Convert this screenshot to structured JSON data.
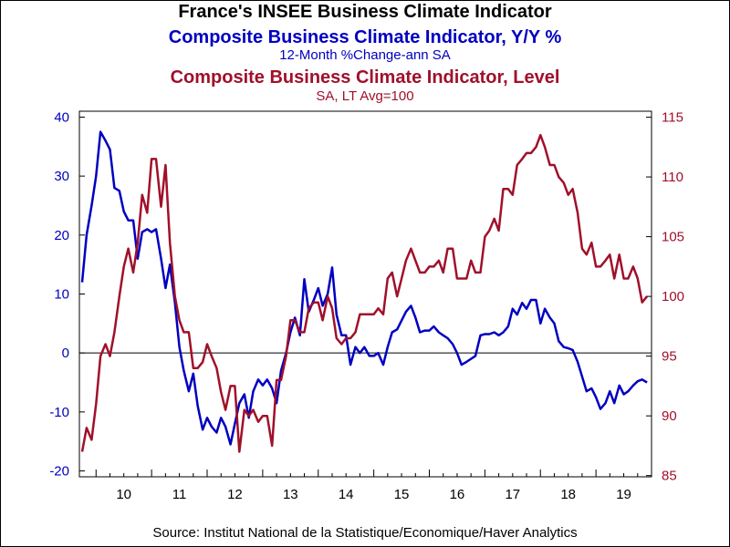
{
  "chart_data": {
    "type": "line",
    "title": "France's INSEE Business Climate Indicator",
    "series": [
      {
        "name": "Composite Business Climate Indicator, Y/Y %",
        "subtitle": "12-Month %Change-ann      SA",
        "axis": "left",
        "color": "#0000c0",
        "points": [
          [
            2009.75,
            12
          ],
          [
            2009.83,
            20
          ],
          [
            2009.92,
            25
          ],
          [
            2010.0,
            30
          ],
          [
            2010.08,
            37.5
          ],
          [
            2010.17,
            36
          ],
          [
            2010.25,
            34.5
          ],
          [
            2010.33,
            28
          ],
          [
            2010.42,
            27.5
          ],
          [
            2010.5,
            24
          ],
          [
            2010.58,
            22.5
          ],
          [
            2010.67,
            22.5
          ],
          [
            2010.75,
            16
          ],
          [
            2010.83,
            20.5
          ],
          [
            2010.92,
            21
          ],
          [
            2011.0,
            20.5
          ],
          [
            2011.08,
            21
          ],
          [
            2011.17,
            16
          ],
          [
            2011.25,
            11
          ],
          [
            2011.33,
            15
          ],
          [
            2011.42,
            8.5
          ],
          [
            2011.5,
            1
          ],
          [
            2011.58,
            -3
          ],
          [
            2011.67,
            -6.5
          ],
          [
            2011.75,
            -3.5
          ],
          [
            2011.83,
            -9
          ],
          [
            2011.92,
            -13
          ],
          [
            2012.0,
            -11
          ],
          [
            2012.08,
            -12.5
          ],
          [
            2012.17,
            -13.5
          ],
          [
            2012.25,
            -11
          ],
          [
            2012.33,
            -12.5
          ],
          [
            2012.42,
            -15.5
          ],
          [
            2012.5,
            -12
          ],
          [
            2012.58,
            -8.5
          ],
          [
            2012.67,
            -7
          ],
          [
            2012.75,
            -11
          ],
          [
            2012.83,
            -6.5
          ],
          [
            2012.92,
            -4.5
          ],
          [
            2013.0,
            -5.5
          ],
          [
            2013.08,
            -4.5
          ],
          [
            2013.17,
            -6
          ],
          [
            2013.25,
            -8.5
          ],
          [
            2013.33,
            -3
          ],
          [
            2013.42,
            0
          ],
          [
            2013.5,
            3.5
          ],
          [
            2013.58,
            6
          ],
          [
            2013.67,
            3
          ],
          [
            2013.75,
            12.5
          ],
          [
            2013.83,
            7
          ],
          [
            2013.92,
            9
          ],
          [
            2014.0,
            11
          ],
          [
            2014.08,
            8
          ],
          [
            2014.17,
            10
          ],
          [
            2014.25,
            14.5
          ],
          [
            2014.33,
            6.5
          ],
          [
            2014.42,
            3
          ],
          [
            2014.5,
            3
          ],
          [
            2014.58,
            -2
          ],
          [
            2014.67,
            1
          ],
          [
            2014.75,
            0
          ],
          [
            2014.83,
            1
          ],
          [
            2014.92,
            -0.5
          ],
          [
            2015.0,
            -0.5
          ],
          [
            2015.08,
            0
          ],
          [
            2015.17,
            -2
          ],
          [
            2015.25,
            1
          ],
          [
            2015.33,
            3.5
          ],
          [
            2015.42,
            4
          ],
          [
            2015.5,
            5.5
          ],
          [
            2015.58,
            7
          ],
          [
            2015.67,
            8
          ],
          [
            2015.75,
            6
          ],
          [
            2015.83,
            3.5
          ],
          [
            2015.92,
            3.8
          ],
          [
            2016.0,
            3.8
          ],
          [
            2016.08,
            4.5
          ],
          [
            2016.17,
            3.5
          ],
          [
            2016.25,
            3
          ],
          [
            2016.33,
            2.5
          ],
          [
            2016.42,
            1.5
          ],
          [
            2016.5,
            0
          ],
          [
            2016.58,
            -2
          ],
          [
            2016.67,
            -1.5
          ],
          [
            2016.75,
            -1
          ],
          [
            2016.83,
            -0.5
          ],
          [
            2016.92,
            3
          ],
          [
            2017.0,
            3.2
          ],
          [
            2017.08,
            3.2
          ],
          [
            2017.17,
            3.5
          ],
          [
            2017.25,
            3
          ],
          [
            2017.33,
            3.5
          ],
          [
            2017.42,
            4.5
          ],
          [
            2017.5,
            7.5
          ],
          [
            2017.58,
            6.5
          ],
          [
            2017.67,
            8.5
          ],
          [
            2017.75,
            7.5
          ],
          [
            2017.83,
            9
          ],
          [
            2017.92,
            9
          ],
          [
            2018.0,
            5
          ],
          [
            2018.08,
            7.5
          ],
          [
            2018.17,
            6
          ],
          [
            2018.25,
            5
          ],
          [
            2018.33,
            2
          ],
          [
            2018.42,
            1
          ],
          [
            2018.5,
            0.8
          ],
          [
            2018.58,
            0.5
          ],
          [
            2018.67,
            -1.5
          ],
          [
            2018.75,
            -4
          ],
          [
            2018.83,
            -6.5
          ],
          [
            2018.92,
            -6
          ],
          [
            2019.0,
            -7.5
          ],
          [
            2019.08,
            -9.5
          ],
          [
            2019.17,
            -8.5
          ],
          [
            2019.25,
            -6.5
          ],
          [
            2019.33,
            -8.5
          ],
          [
            2019.42,
            -5.5
          ],
          [
            2019.5,
            -7
          ],
          [
            2019.58,
            -6.5
          ],
          [
            2019.67,
            -5.5
          ],
          [
            2019.75,
            -4.8
          ],
          [
            2019.83,
            -4.5
          ],
          [
            2019.92,
            -5
          ]
        ]
      },
      {
        "name": "Composite Business Climate Indicator, Level",
        "subtitle": "SA, LT Avg=100",
        "axis": "right",
        "color": "#a0102a",
        "points": [
          [
            2009.75,
            87
          ],
          [
            2009.83,
            89
          ],
          [
            2009.92,
            88
          ],
          [
            2010.0,
            91
          ],
          [
            2010.08,
            95
          ],
          [
            2010.17,
            96
          ],
          [
            2010.25,
            95
          ],
          [
            2010.33,
            97
          ],
          [
            2010.42,
            100
          ],
          [
            2010.5,
            102.5
          ],
          [
            2010.58,
            104
          ],
          [
            2010.67,
            102
          ],
          [
            2010.75,
            104.5
          ],
          [
            2010.83,
            108.5
          ],
          [
            2010.92,
            107
          ],
          [
            2011.0,
            111.5
          ],
          [
            2011.08,
            111.5
          ],
          [
            2011.17,
            107.5
          ],
          [
            2011.25,
            111
          ],
          [
            2011.33,
            104.5
          ],
          [
            2011.42,
            100
          ],
          [
            2011.5,
            98
          ],
          [
            2011.58,
            97
          ],
          [
            2011.67,
            97
          ],
          [
            2011.75,
            94
          ],
          [
            2011.83,
            94
          ],
          [
            2011.92,
            94.5
          ],
          [
            2012.0,
            96
          ],
          [
            2012.08,
            95
          ],
          [
            2012.17,
            94
          ],
          [
            2012.25,
            92
          ],
          [
            2012.33,
            90.5
          ],
          [
            2012.42,
            92.5
          ],
          [
            2012.5,
            92.5
          ],
          [
            2012.58,
            87
          ],
          [
            2012.67,
            90.5
          ],
          [
            2012.75,
            90
          ],
          [
            2012.83,
            90.5
          ],
          [
            2012.92,
            89.5
          ],
          [
            2013.0,
            90
          ],
          [
            2013.08,
            90
          ],
          [
            2013.17,
            87.5
          ],
          [
            2013.25,
            93
          ],
          [
            2013.33,
            93
          ],
          [
            2013.42,
            95
          ],
          [
            2013.5,
            98
          ],
          [
            2013.58,
            98
          ],
          [
            2013.67,
            97
          ],
          [
            2013.75,
            97
          ],
          [
            2013.83,
            99
          ],
          [
            2013.92,
            99.5
          ],
          [
            2014.0,
            99.5
          ],
          [
            2014.08,
            98
          ],
          [
            2014.17,
            100
          ],
          [
            2014.25,
            99
          ],
          [
            2014.33,
            96.5
          ],
          [
            2014.42,
            96
          ],
          [
            2014.5,
            96.5
          ],
          [
            2014.58,
            96.5
          ],
          [
            2014.67,
            97
          ],
          [
            2014.75,
            98.5
          ],
          [
            2014.83,
            98.5
          ],
          [
            2014.92,
            98.5
          ],
          [
            2015.0,
            98.5
          ],
          [
            2015.08,
            99
          ],
          [
            2015.17,
            98.5
          ],
          [
            2015.25,
            101.5
          ],
          [
            2015.33,
            102
          ],
          [
            2015.42,
            100
          ],
          [
            2015.5,
            101.5
          ],
          [
            2015.58,
            103
          ],
          [
            2015.67,
            104
          ],
          [
            2015.75,
            103
          ],
          [
            2015.83,
            102
          ],
          [
            2015.92,
            102
          ],
          [
            2016.0,
            102.5
          ],
          [
            2016.08,
            102.5
          ],
          [
            2016.17,
            103
          ],
          [
            2016.25,
            102
          ],
          [
            2016.33,
            104
          ],
          [
            2016.42,
            104
          ],
          [
            2016.5,
            101.5
          ],
          [
            2016.58,
            101.5
          ],
          [
            2016.67,
            101.5
          ],
          [
            2016.75,
            103
          ],
          [
            2016.83,
            102
          ],
          [
            2016.92,
            102
          ],
          [
            2017.0,
            105
          ],
          [
            2017.08,
            105.5
          ],
          [
            2017.17,
            106.5
          ],
          [
            2017.25,
            105.5
          ],
          [
            2017.33,
            109
          ],
          [
            2017.42,
            109
          ],
          [
            2017.5,
            108.5
          ],
          [
            2017.58,
            111
          ],
          [
            2017.67,
            111.5
          ],
          [
            2017.75,
            112
          ],
          [
            2017.83,
            112
          ],
          [
            2017.92,
            112.5
          ],
          [
            2018.0,
            113.5
          ],
          [
            2018.08,
            112.5
          ],
          [
            2018.17,
            111
          ],
          [
            2018.25,
            111
          ],
          [
            2018.33,
            110
          ],
          [
            2018.42,
            109.5
          ],
          [
            2018.5,
            108.5
          ],
          [
            2018.58,
            109
          ],
          [
            2018.67,
            107
          ],
          [
            2018.75,
            104
          ],
          [
            2018.83,
            103.5
          ],
          [
            2018.92,
            104.5
          ],
          [
            2019.0,
            102.5
          ],
          [
            2019.08,
            102.5
          ],
          [
            2019.17,
            103
          ],
          [
            2019.25,
            103.5
          ],
          [
            2019.33,
            101.5
          ],
          [
            2019.42,
            103.5
          ],
          [
            2019.5,
            101.5
          ],
          [
            2019.58,
            101.5
          ],
          [
            2019.67,
            102.5
          ],
          [
            2019.75,
            101.5
          ],
          [
            2019.83,
            99.5
          ],
          [
            2019.92,
            100
          ]
        ]
      }
    ],
    "x_ticks": [
      "10",
      "11",
      "12",
      "13",
      "14",
      "15",
      "16",
      "17",
      "18",
      "19"
    ],
    "x_tick_years": [
      2010,
      2011,
      2012,
      2013,
      2014,
      2015,
      2016,
      2017,
      2018,
      2019
    ],
    "xlim": [
      2009.7,
      2020.0
    ],
    "y_left": {
      "ylim": [
        -21,
        41
      ],
      "ticks": [
        -20,
        -10,
        0,
        10,
        20,
        30,
        40
      ]
    },
    "y_right": {
      "ylim": [
        84.9,
        115.5
      ],
      "ticks": [
        85,
        90,
        95,
        100,
        105,
        110,
        115
      ]
    },
    "zero_line": 0,
    "grid": false,
    "legend": "none",
    "source": "Source:  Institut National de la Statistique/Economique/Haver Analytics"
  }
}
